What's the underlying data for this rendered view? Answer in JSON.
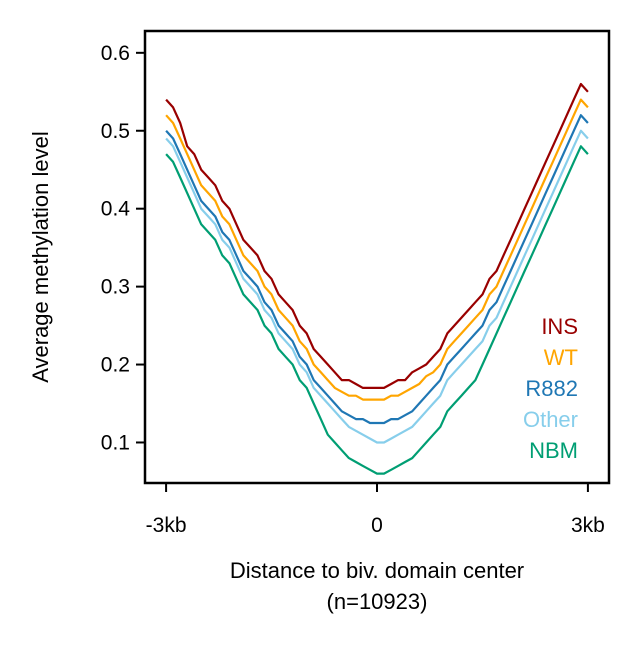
{
  "chart_data": {
    "type": "line",
    "xlabel": "Distance to biv. domain center",
    "xlabel_sub": "(n=10923)",
    "ylabel": "Average methylation level",
    "x_ticks": [
      {
        "value": -3000,
        "label": "-3kb"
      },
      {
        "value": 0,
        "label": "0"
      },
      {
        "value": 3000,
        "label": "3kb"
      }
    ],
    "y_ticks": [
      0.1,
      0.2,
      0.3,
      0.4,
      0.5,
      0.6
    ],
    "xlim": [
      -3300,
      3300
    ],
    "ylim": [
      0.048,
      0.628
    ],
    "x": [
      -3000,
      -2900,
      -2800,
      -2700,
      -2600,
      -2500,
      -2400,
      -2300,
      -2200,
      -2100,
      -2000,
      -1900,
      -1800,
      -1700,
      -1600,
      -1500,
      -1400,
      -1300,
      -1200,
      -1100,
      -1000,
      -900,
      -800,
      -700,
      -600,
      -500,
      -400,
      -300,
      -200,
      -100,
      0,
      100,
      200,
      300,
      400,
      500,
      600,
      700,
      800,
      900,
      1000,
      1100,
      1200,
      1300,
      1400,
      1500,
      1600,
      1700,
      1800,
      1900,
      2000,
      2100,
      2200,
      2300,
      2400,
      2500,
      2600,
      2700,
      2800,
      2900,
      3000
    ],
    "series": [
      {
        "name": "INS",
        "color": "#990000",
        "values": [
          0.54,
          0.53,
          0.51,
          0.48,
          0.47,
          0.45,
          0.44,
          0.43,
          0.41,
          0.4,
          0.38,
          0.36,
          0.35,
          0.34,
          0.32,
          0.31,
          0.29,
          0.28,
          0.27,
          0.25,
          0.24,
          0.22,
          0.21,
          0.2,
          0.19,
          0.18,
          0.18,
          0.175,
          0.17,
          0.17,
          0.17,
          0.17,
          0.175,
          0.18,
          0.18,
          0.19,
          0.195,
          0.2,
          0.21,
          0.22,
          0.24,
          0.25,
          0.26,
          0.27,
          0.28,
          0.29,
          0.31,
          0.32,
          0.34,
          0.36,
          0.38,
          0.4,
          0.42,
          0.44,
          0.46,
          0.48,
          0.5,
          0.52,
          0.54,
          0.56,
          0.55
        ]
      },
      {
        "name": "WT",
        "color": "#ffa500",
        "values": [
          0.52,
          0.51,
          0.49,
          0.47,
          0.45,
          0.43,
          0.42,
          0.41,
          0.39,
          0.38,
          0.36,
          0.34,
          0.33,
          0.32,
          0.3,
          0.29,
          0.27,
          0.26,
          0.25,
          0.23,
          0.22,
          0.2,
          0.19,
          0.18,
          0.17,
          0.165,
          0.16,
          0.16,
          0.155,
          0.155,
          0.155,
          0.155,
          0.16,
          0.16,
          0.165,
          0.17,
          0.175,
          0.185,
          0.19,
          0.2,
          0.22,
          0.23,
          0.24,
          0.25,
          0.26,
          0.27,
          0.29,
          0.3,
          0.32,
          0.34,
          0.36,
          0.38,
          0.4,
          0.42,
          0.44,
          0.46,
          0.48,
          0.5,
          0.52,
          0.54,
          0.53
        ]
      },
      {
        "name": "R882",
        "color": "#1f77b4",
        "values": [
          0.5,
          0.49,
          0.47,
          0.45,
          0.43,
          0.41,
          0.4,
          0.39,
          0.37,
          0.36,
          0.34,
          0.32,
          0.31,
          0.3,
          0.28,
          0.27,
          0.25,
          0.24,
          0.23,
          0.21,
          0.2,
          0.18,
          0.17,
          0.16,
          0.15,
          0.14,
          0.135,
          0.13,
          0.13,
          0.125,
          0.125,
          0.125,
          0.13,
          0.13,
          0.135,
          0.14,
          0.15,
          0.16,
          0.17,
          0.18,
          0.2,
          0.21,
          0.22,
          0.23,
          0.24,
          0.25,
          0.27,
          0.28,
          0.3,
          0.32,
          0.34,
          0.36,
          0.38,
          0.4,
          0.42,
          0.44,
          0.46,
          0.48,
          0.5,
          0.52,
          0.51
        ]
      },
      {
        "name": "Other",
        "color": "#87ceeb",
        "values": [
          0.49,
          0.48,
          0.46,
          0.44,
          0.42,
          0.4,
          0.39,
          0.38,
          0.36,
          0.35,
          0.33,
          0.31,
          0.3,
          0.29,
          0.27,
          0.26,
          0.24,
          0.23,
          0.22,
          0.2,
          0.19,
          0.17,
          0.16,
          0.15,
          0.14,
          0.13,
          0.12,
          0.115,
          0.11,
          0.105,
          0.1,
          0.1,
          0.105,
          0.11,
          0.115,
          0.12,
          0.13,
          0.14,
          0.15,
          0.16,
          0.18,
          0.19,
          0.2,
          0.21,
          0.22,
          0.23,
          0.25,
          0.26,
          0.28,
          0.3,
          0.32,
          0.34,
          0.36,
          0.38,
          0.4,
          0.42,
          0.44,
          0.46,
          0.48,
          0.5,
          0.49
        ]
      },
      {
        "name": "NBM",
        "color": "#009e73",
        "values": [
          0.47,
          0.46,
          0.44,
          0.42,
          0.4,
          0.38,
          0.37,
          0.36,
          0.34,
          0.33,
          0.31,
          0.29,
          0.28,
          0.27,
          0.25,
          0.24,
          0.22,
          0.21,
          0.2,
          0.18,
          0.17,
          0.15,
          0.13,
          0.11,
          0.1,
          0.09,
          0.08,
          0.075,
          0.07,
          0.065,
          0.06,
          0.06,
          0.065,
          0.07,
          0.075,
          0.08,
          0.09,
          0.1,
          0.11,
          0.12,
          0.14,
          0.15,
          0.16,
          0.17,
          0.18,
          0.2,
          0.22,
          0.24,
          0.26,
          0.28,
          0.3,
          0.32,
          0.34,
          0.36,
          0.38,
          0.4,
          0.42,
          0.44,
          0.46,
          0.48,
          0.47
        ]
      }
    ],
    "legend_position": "right-middle",
    "grid": false
  }
}
